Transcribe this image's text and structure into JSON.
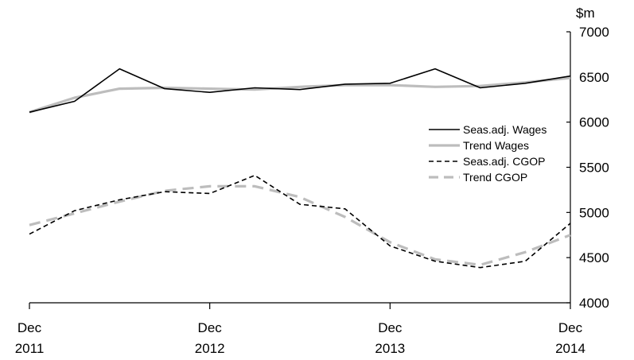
{
  "chart_data": {
    "type": "line",
    "y_unit": "$m",
    "ylim": [
      4000,
      7000
    ],
    "y_ticks": [
      "7000",
      "6500",
      "6000",
      "5500",
      "5000",
      "4500",
      "4000"
    ],
    "y_tick_values": [
      7000,
      6500,
      6000,
      5500,
      5000,
      4500,
      4000
    ],
    "x_ticks": [
      {
        "month": "Dec",
        "year": "2011",
        "date": "2011-12"
      },
      {
        "month": "Dec",
        "year": "2012",
        "date": "2012-12"
      },
      {
        "month": "Dec",
        "year": "2013",
        "date": "2013-12"
      },
      {
        "month": "Dec",
        "year": "2014",
        "date": "2014-12"
      }
    ],
    "x": [
      "2011-12",
      "2012-03",
      "2012-06",
      "2012-09",
      "2012-12",
      "2013-03",
      "2013-06",
      "2013-09",
      "2013-12",
      "2014-03",
      "2014-06",
      "2014-09",
      "2014-12"
    ],
    "grid": false,
    "legend_position": "center-right",
    "series": [
      {
        "name": "Seas.adj. Wages",
        "color": "#000000",
        "style": "solid",
        "width": 1.6,
        "values": [
          6110,
          6230,
          6590,
          6370,
          6330,
          6380,
          6360,
          6420,
          6430,
          6590,
          6380,
          6430,
          6510
        ]
      },
      {
        "name": "Trend Wages",
        "color": "#bdbdbd",
        "style": "solid",
        "width": 3.2,
        "values": [
          6110,
          6270,
          6370,
          6380,
          6370,
          6360,
          6390,
          6410,
          6410,
          6390,
          6400,
          6440,
          6490
        ]
      },
      {
        "name": "Seas.adj. CGOP",
        "color": "#000000",
        "style": "dashed",
        "width": 1.6,
        "values": [
          4760,
          5020,
          5140,
          5230,
          5210,
          5410,
          5090,
          5040,
          4630,
          4460,
          4390,
          4460,
          4880
        ]
      },
      {
        "name": "Trend CGOP",
        "color": "#bdbdbd",
        "style": "dashed",
        "width": 3.2,
        "values": [
          4860,
          4990,
          5120,
          5240,
          5290,
          5290,
          5170,
          4950,
          4670,
          4480,
          4420,
          4560,
          4750
        ]
      }
    ]
  }
}
